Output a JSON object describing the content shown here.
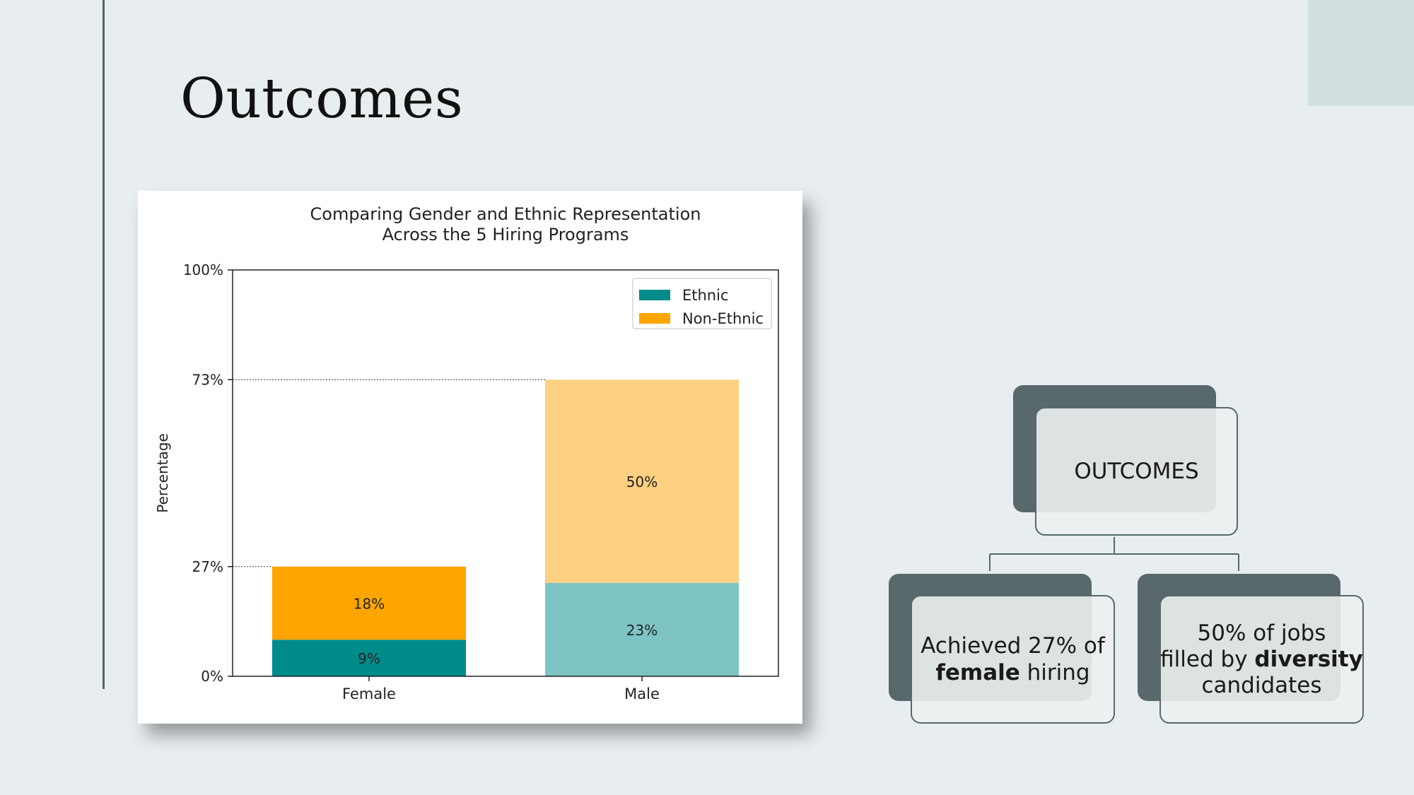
{
  "slide": {
    "title": "Outcomes"
  },
  "chart_data": {
    "type": "bar",
    "stacked": true,
    "title_lines": [
      "Comparing Gender and Ethnic Representation",
      "Across the 5 Hiring Programs"
    ],
    "ylabel": "Percentage",
    "categories": [
      "Female",
      "Male"
    ],
    "series": [
      {
        "name": "Ethnic",
        "values": [
          9,
          23
        ],
        "labels": [
          "9%",
          "23%"
        ],
        "colors": [
          "#008b8b",
          "#7fc4c4"
        ]
      },
      {
        "name": "Non-Ethnic",
        "values": [
          18,
          50
        ],
        "labels": [
          "18%",
          "50%"
        ],
        "colors": [
          "#ffa500",
          "#fed082"
        ]
      }
    ],
    "legend_colors": [
      "#008b8b",
      "#ffa500"
    ],
    "yticks": [
      0,
      27,
      73,
      100
    ],
    "ytick_labels": [
      "0%",
      "27%",
      "73%",
      "100%"
    ],
    "ylim": [
      0,
      100
    ],
    "reference_lines": [
      27,
      73
    ],
    "legend": "top-right"
  },
  "diagram": {
    "root": "OUTCOMES",
    "left_line1": "Achieved 27% of",
    "left_bold": "female",
    "left_rest": " hiring",
    "right_line1": "50% of jobs",
    "right_pre": "filled by ",
    "right_bold": "diversity",
    "right_line3": "candidates"
  }
}
